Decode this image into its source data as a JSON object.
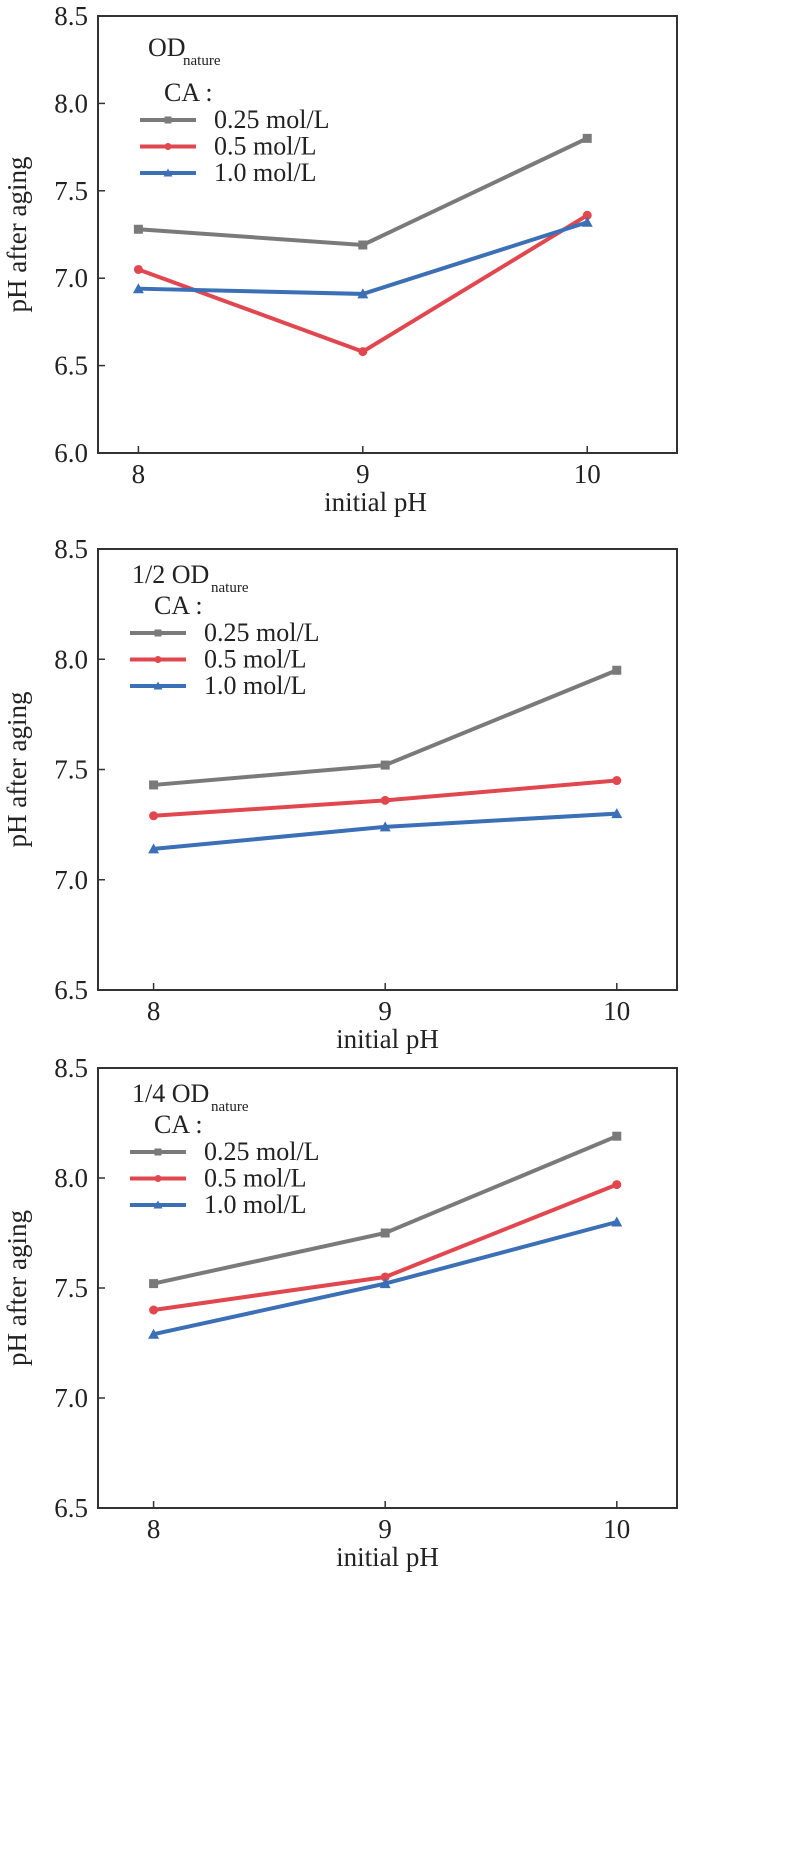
{
  "chart_data": [
    {
      "type": "line",
      "title": "OD",
      "title_subscript": "nature",
      "legend_title": "CA :",
      "xlabel": "initial pH",
      "ylabel": "pH after aging",
      "x": [
        8,
        9,
        10
      ],
      "x_ticks": [
        "8",
        "9",
        "10"
      ],
      "xlim": [
        7.82,
        10.4
      ],
      "ylim": [
        6.0,
        8.5
      ],
      "y_ticks": [
        "6.0",
        "6.5",
        "7.0",
        "7.5",
        "8.0",
        "8.5"
      ],
      "legend_position": "top-left",
      "grid": false,
      "series": [
        {
          "name": "0.25 mol/L",
          "color": "#7a7a7a",
          "marker": "square",
          "values": [
            7.28,
            7.19,
            7.8
          ]
        },
        {
          "name": "0.5 mol/L",
          "color": "#e0474f",
          "marker": "circle",
          "values": [
            7.05,
            6.58,
            7.36
          ]
        },
        {
          "name": "1.0 mol/L",
          "color": "#3b6fb6",
          "marker": "triangle",
          "values": [
            6.94,
            6.91,
            7.32
          ]
        }
      ]
    },
    {
      "type": "line",
      "title": "1/2 OD",
      "title_subscript": "nature",
      "legend_title": "CA :",
      "xlabel": "initial pH",
      "ylabel": "pH after aging",
      "x": [
        8,
        9,
        10
      ],
      "x_ticks": [
        "8",
        "9",
        "10"
      ],
      "xlim": [
        7.76,
        10.26
      ],
      "ylim": [
        6.5,
        8.5
      ],
      "y_ticks": [
        "6.5",
        "7.0",
        "7.5",
        "8.0",
        "8.5"
      ],
      "legend_position": "top-left",
      "grid": false,
      "series": [
        {
          "name": "0.25 mol/L",
          "color": "#7a7a7a",
          "marker": "square",
          "values": [
            7.43,
            7.52,
            7.95
          ]
        },
        {
          "name": "0.5 mol/L",
          "color": "#e0474f",
          "marker": "circle",
          "values": [
            7.29,
            7.36,
            7.45
          ]
        },
        {
          "name": "1.0 mol/L",
          "color": "#3b6fb6",
          "marker": "triangle",
          "values": [
            7.14,
            7.24,
            7.3
          ]
        }
      ]
    },
    {
      "type": "line",
      "title": "1/4 OD",
      "title_subscript": "nature",
      "legend_title": "CA :",
      "xlabel": "initial pH",
      "ylabel": "pH after aging",
      "x": [
        8,
        9,
        10
      ],
      "x_ticks": [
        "8",
        "9",
        "10"
      ],
      "xlim": [
        7.76,
        10.26
      ],
      "ylim": [
        6.5,
        8.5
      ],
      "y_ticks": [
        "6.5",
        "7.0",
        "7.5",
        "8.0",
        "8.5"
      ],
      "legend_position": "top-left",
      "grid": false,
      "series": [
        {
          "name": "0.25 mol/L",
          "color": "#7a7a7a",
          "marker": "square",
          "values": [
            7.52,
            7.75,
            8.19
          ]
        },
        {
          "name": "0.5 mol/L",
          "color": "#e0474f",
          "marker": "circle",
          "values": [
            7.4,
            7.55,
            7.97
          ]
        },
        {
          "name": "1.0 mol/L",
          "color": "#3b6fb6",
          "marker": "triangle",
          "values": [
            7.29,
            7.52,
            7.8
          ]
        }
      ]
    }
  ]
}
